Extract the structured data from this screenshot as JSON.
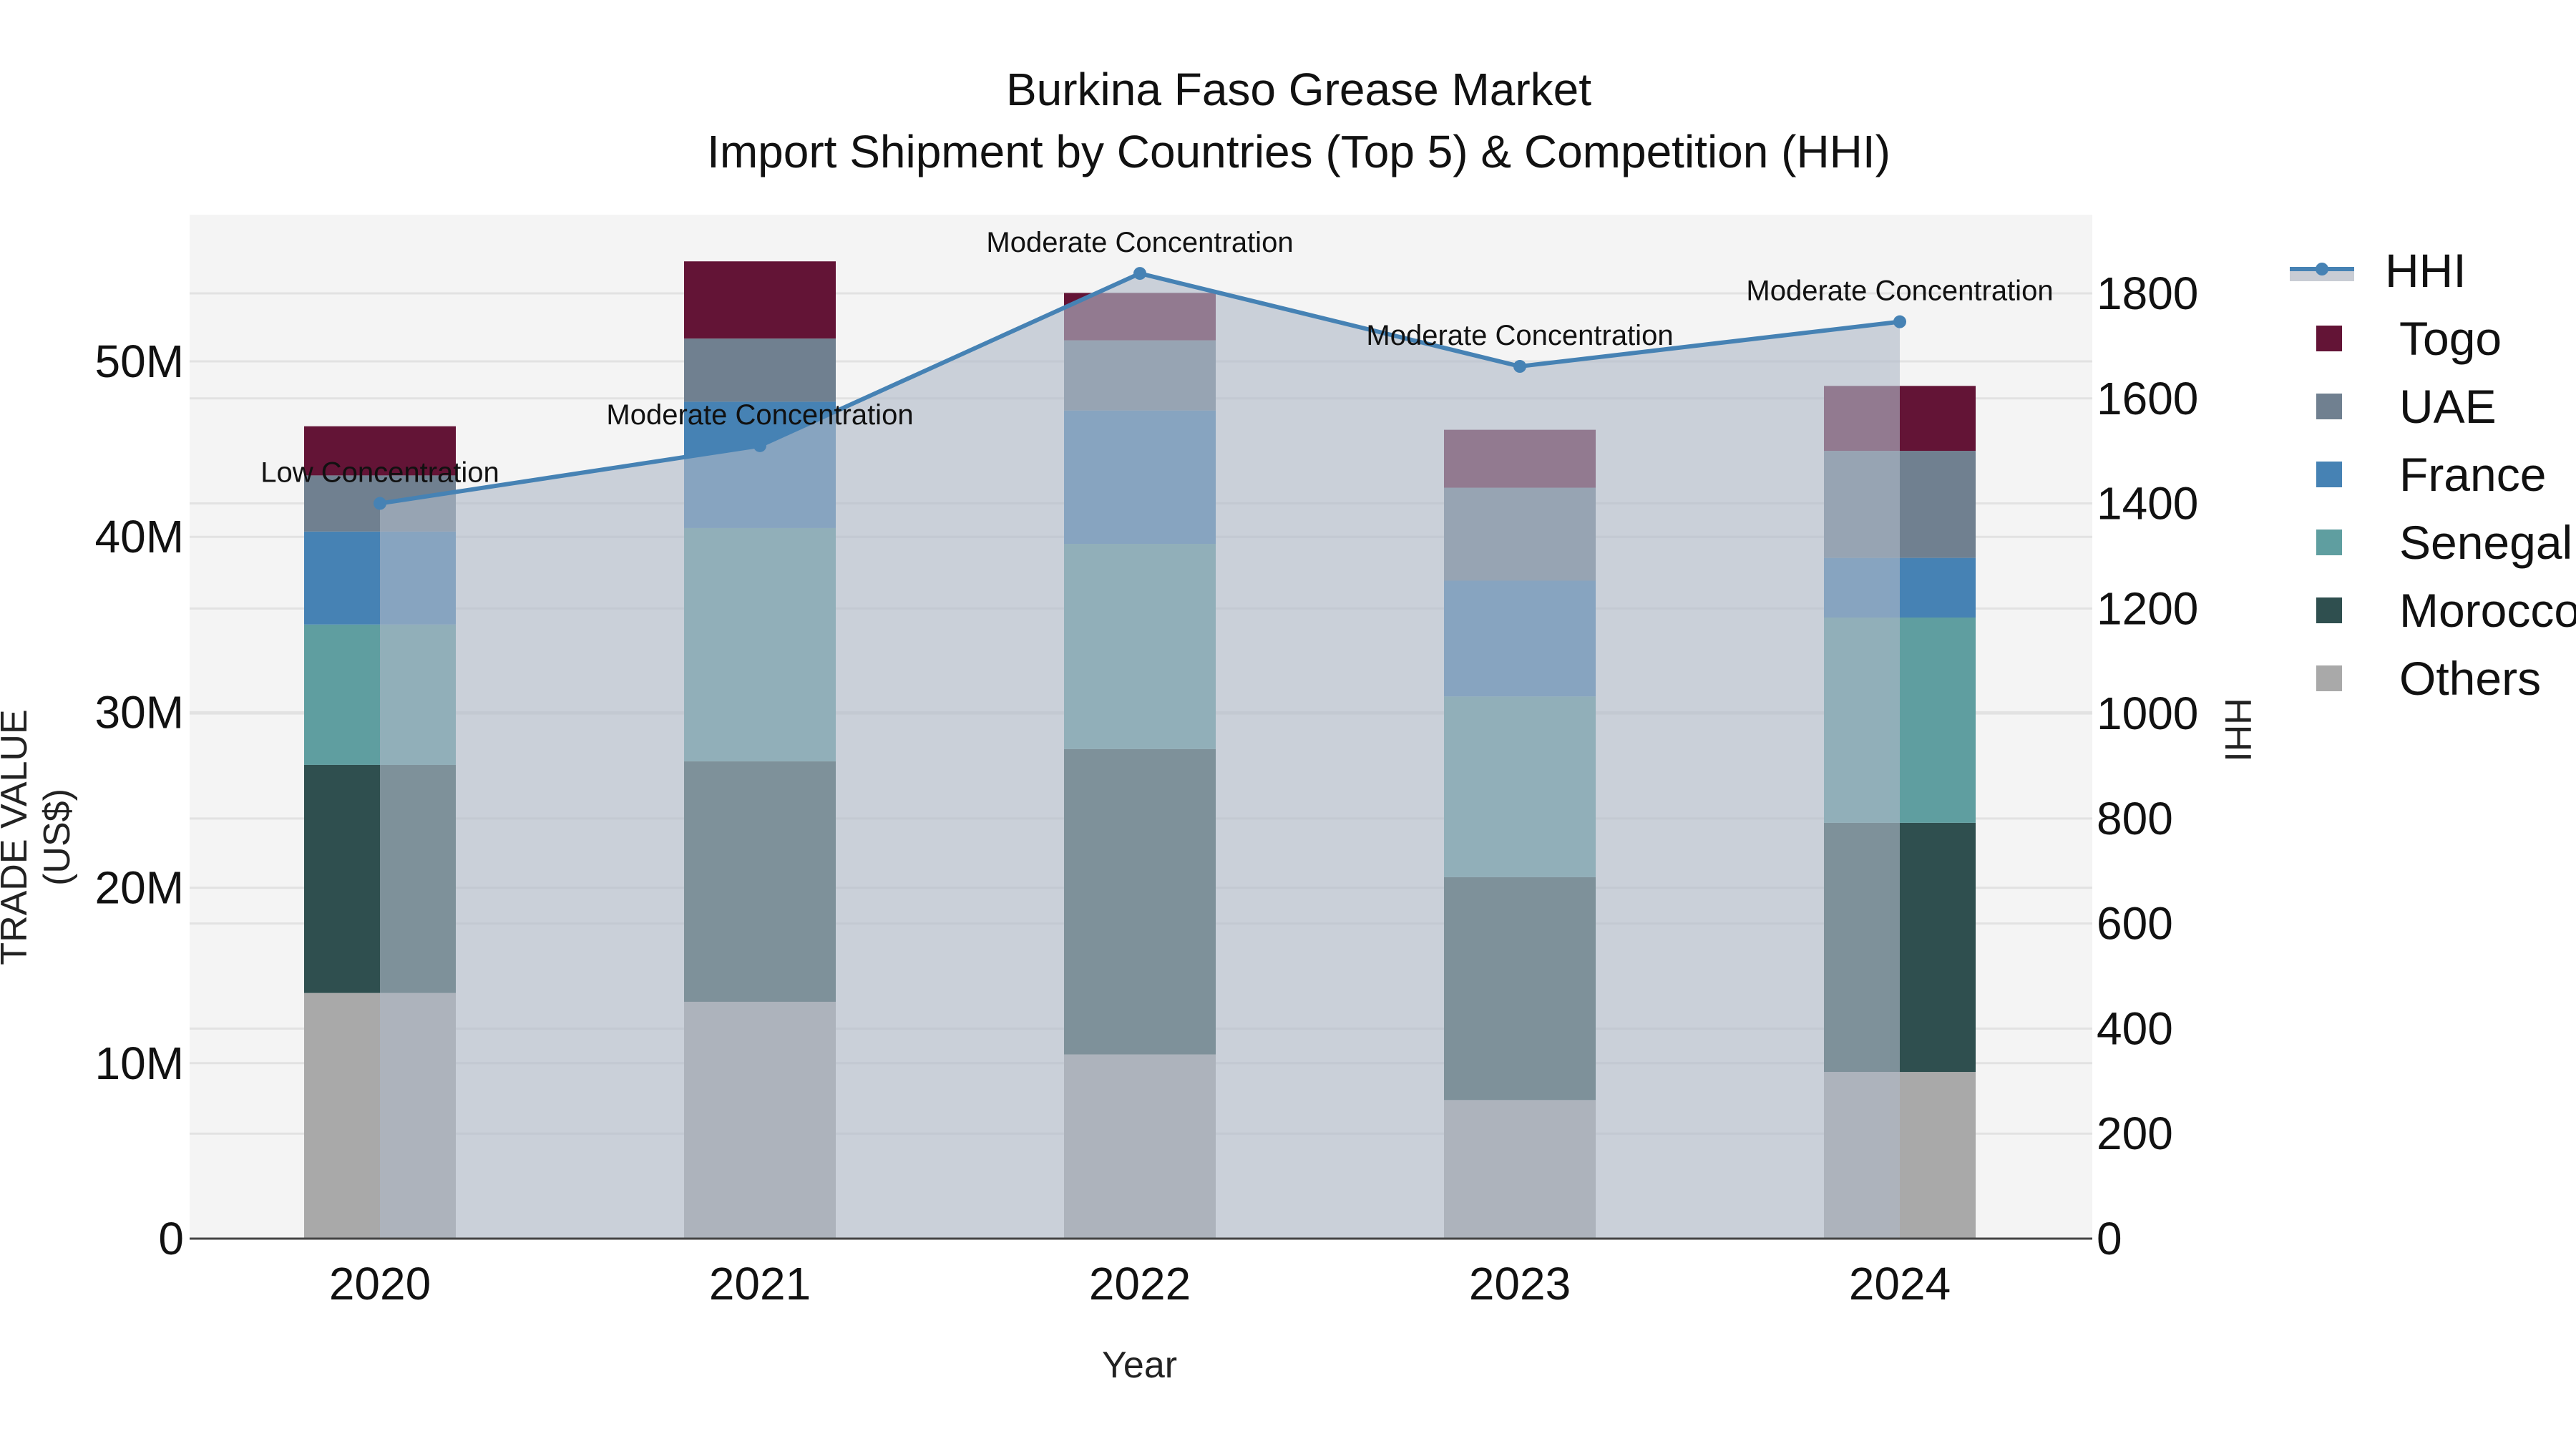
{
  "title": {
    "line1": "Burkina Faso Grease Market",
    "line2": "Import Shipment by Countries (Top 5) & Competition (HHI)"
  },
  "axes": {
    "x_title": "Year",
    "y_left_title": "TRADE VALUE (US$)",
    "y_right_title": "HHI",
    "y_left_ticks": [
      "0",
      "10M",
      "20M",
      "30M",
      "40M",
      "50M"
    ],
    "y_right_ticks": [
      "0",
      "200",
      "400",
      "600",
      "800",
      "1000",
      "1200",
      "1400",
      "1600",
      "1800"
    ]
  },
  "legend": {
    "items": [
      {
        "label": "HHI",
        "color": "#4682B4",
        "type": "line"
      },
      {
        "label": "Togo",
        "color": "#631436",
        "type": "bar"
      },
      {
        "label": "UAE",
        "color": "#708090",
        "type": "bar"
      },
      {
        "label": "France",
        "color": "#4682B4",
        "type": "bar"
      },
      {
        "label": "Senegal",
        "color": "#5F9EA0",
        "type": "bar"
      },
      {
        "label": "Morocco",
        "color": "#2F4F4F",
        "type": "bar"
      },
      {
        "label": "Others",
        "color": "#A9A9A9",
        "type": "bar"
      }
    ]
  },
  "chart_data": {
    "type": "bar",
    "stacked": true,
    "title": "Burkina Faso Grease Market — Import Shipment by Countries (Top 5) & Competition (HHI)",
    "xlabel": "Year",
    "ylabel": "TRADE VALUE (US$)",
    "y2label": "HHI",
    "categories": [
      "2020",
      "2021",
      "2022",
      "2023",
      "2024"
    ],
    "ylim": [
      0,
      58000000
    ],
    "y2lim": [
      0,
      1950
    ],
    "series": [
      {
        "name": "Others",
        "color": "#A9A9A9",
        "values": [
          14000000,
          13500000,
          10500000,
          7900000,
          9500000
        ]
      },
      {
        "name": "Morocco",
        "color": "#2F4F4F",
        "values": [
          13000000,
          13700000,
          17400000,
          12700000,
          14200000
        ]
      },
      {
        "name": "Senegal",
        "color": "#5F9EA0",
        "values": [
          8000000,
          13300000,
          11700000,
          10300000,
          11700000
        ]
      },
      {
        "name": "France",
        "color": "#4682B4",
        "values": [
          5300000,
          7200000,
          7600000,
          6600000,
          3400000
        ]
      },
      {
        "name": "UAE",
        "color": "#708090",
        "values": [
          3200000,
          3600000,
          4000000,
          5300000,
          6100000
        ]
      },
      {
        "name": "Togo",
        "color": "#631436",
        "values": [
          2800000,
          4400000,
          2700000,
          3300000,
          3700000
        ]
      }
    ],
    "line_series": {
      "name": "HHI",
      "axis": "right",
      "color": "#4682B4",
      "fill": "tozeroy",
      "values": [
        1400,
        1510,
        1838,
        1661,
        1746
      ],
      "annotations": [
        "Low Concentration",
        "Moderate Concentration",
        "Moderate Concentration",
        "Moderate Concentration",
        "Moderate Concentration"
      ]
    },
    "grid": true,
    "legend_position": "right"
  }
}
